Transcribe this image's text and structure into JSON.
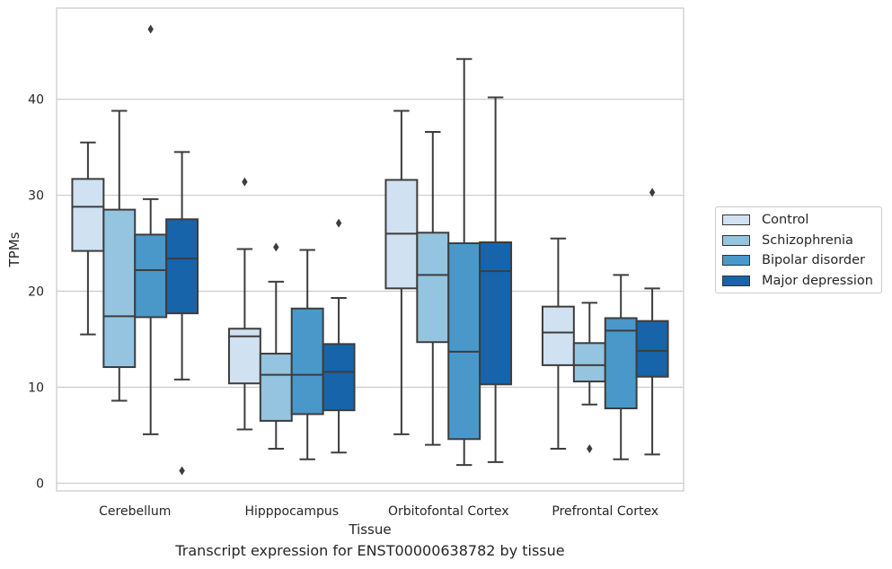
{
  "chart_data": {
    "type": "box",
    "title": "Transcript expression for ENST00000638782 by tissue",
    "xlabel": "Tissue",
    "ylabel": "TPMs",
    "ylim": [
      -0.8,
      49.5
    ],
    "yticks": [
      0,
      10,
      20,
      30,
      40
    ],
    "grid": true,
    "legend_position": "right",
    "categories": [
      "Cerebellum",
      "Hipppocampus",
      "Orbitofontal Cortex",
      "Prefrontal Cortex"
    ],
    "series": [
      {
        "name": "Control",
        "color": "#d0e1f2",
        "boxes": [
          {
            "whisker_low": 15.5,
            "q1": 24.2,
            "median": 28.8,
            "q3": 31.7,
            "whisker_high": 35.5,
            "outliers": []
          },
          {
            "whisker_low": 5.6,
            "q1": 10.4,
            "median": 15.3,
            "q3": 16.1,
            "whisker_high": 24.4,
            "outliers": [
              31.4
            ]
          },
          {
            "whisker_low": 5.1,
            "q1": 20.3,
            "median": 26.0,
            "q3": 31.6,
            "whisker_high": 38.8,
            "outliers": []
          },
          {
            "whisker_low": 3.6,
            "q1": 12.3,
            "median": 15.7,
            "q3": 18.4,
            "whisker_high": 25.5,
            "outliers": []
          }
        ]
      },
      {
        "name": "Schizophrenia",
        "color": "#94c4df",
        "boxes": [
          {
            "whisker_low": 8.6,
            "q1": 12.1,
            "median": 17.4,
            "q3": 28.5,
            "whisker_high": 38.8,
            "outliers": []
          },
          {
            "whisker_low": 3.6,
            "q1": 6.5,
            "median": 11.3,
            "q3": 13.5,
            "whisker_high": 21.0,
            "outliers": [
              24.6
            ]
          },
          {
            "whisker_low": 4.0,
            "q1": 14.7,
            "median": 21.7,
            "q3": 26.1,
            "whisker_high": 36.6,
            "outliers": []
          },
          {
            "whisker_low": 8.2,
            "q1": 10.6,
            "median": 12.3,
            "q3": 14.6,
            "whisker_high": 18.8,
            "outliers": [
              3.6
            ]
          }
        ]
      },
      {
        "name": "Bipolar disorder",
        "color": "#4a98c9",
        "boxes": [
          {
            "whisker_low": 5.1,
            "q1": 17.3,
            "median": 22.2,
            "q3": 25.9,
            "whisker_high": 29.6,
            "outliers": [
              47.3
            ]
          },
          {
            "whisker_low": 2.5,
            "q1": 7.2,
            "median": 11.3,
            "q3": 18.2,
            "whisker_high": 24.3,
            "outliers": []
          },
          {
            "whisker_low": 1.9,
            "q1": 4.6,
            "median": 13.7,
            "q3": 25.0,
            "whisker_high": 44.2,
            "outliers": []
          },
          {
            "whisker_low": 2.5,
            "q1": 7.8,
            "median": 15.9,
            "q3": 17.2,
            "whisker_high": 21.7,
            "outliers": []
          }
        ]
      },
      {
        "name": "Major depression",
        "color": "#1764ab",
        "boxes": [
          {
            "whisker_low": 10.8,
            "q1": 17.7,
            "median": 23.4,
            "q3": 27.5,
            "whisker_high": 34.5,
            "outliers": [
              1.3
            ]
          },
          {
            "whisker_low": 3.2,
            "q1": 7.6,
            "median": 11.6,
            "q3": 14.5,
            "whisker_high": 19.3,
            "outliers": [
              27.1
            ]
          },
          {
            "whisker_low": 2.2,
            "q1": 10.3,
            "median": 22.1,
            "q3": 25.1,
            "whisker_high": 40.2,
            "outliers": []
          },
          {
            "whisker_low": 3.0,
            "q1": 11.1,
            "median": 13.8,
            "q3": 16.9,
            "whisker_high": 20.3,
            "outliers": [
              30.3
            ]
          }
        ]
      }
    ]
  }
}
